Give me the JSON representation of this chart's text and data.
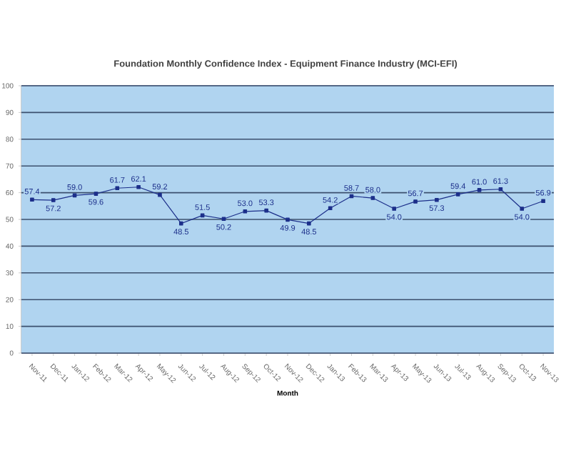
{
  "chart_data": {
    "type": "line",
    "title": "Foundation Monthly Confidence Index - Equipment Finance Industry (MCI-EFI)",
    "xlabel": "Month",
    "categories": [
      "Nov-11",
      "Dec-11",
      "Jan-12",
      "Feb-12",
      "Mar-12",
      "Apr-12",
      "May-12",
      "Jun-12",
      "Jul-12",
      "Aug-12",
      "Sep-12",
      "Oct-12",
      "Nov-12",
      "Dec-12",
      "Jan-13",
      "Feb-13",
      "Mar-13",
      "Apr-13",
      "May-13",
      "Jun-13",
      "Jul-13",
      "Aug-13",
      "Sep-13",
      "Oct-13",
      "Nov-13"
    ],
    "series": [
      {
        "color": "#1c2f8a",
        "values": [
          57.4,
          57.2,
          59.0,
          59.6,
          61.7,
          62.1,
          59.2,
          48.5,
          51.5,
          50.2,
          53.0,
          53.3,
          49.9,
          48.5,
          54.2,
          58.7,
          58.0,
          54.0,
          56.7,
          57.3,
          59.4,
          61.0,
          61.3,
          54.0,
          56.9
        ],
        "value_labels": [
          "57.4",
          "57.2",
          "59.0",
          "59.6",
          "61.7",
          "62.1",
          "59.2",
          "48.5",
          "51.5",
          "50.2",
          "53.0",
          "53.3",
          "49.9",
          "48.5",
          "54.2",
          "58.7",
          "58.0",
          "54.0",
          "56.7",
          "57.3",
          "59.4",
          "61.0",
          "61.3",
          "54.0",
          "56.9"
        ]
      }
    ],
    "ylim": [
      0,
      100
    ],
    "yticks": [
      0,
      10,
      20,
      30,
      40,
      50,
      60,
      70,
      80,
      90,
      100
    ],
    "grid": "y",
    "marker": "square",
    "line_style": "solid"
  }
}
